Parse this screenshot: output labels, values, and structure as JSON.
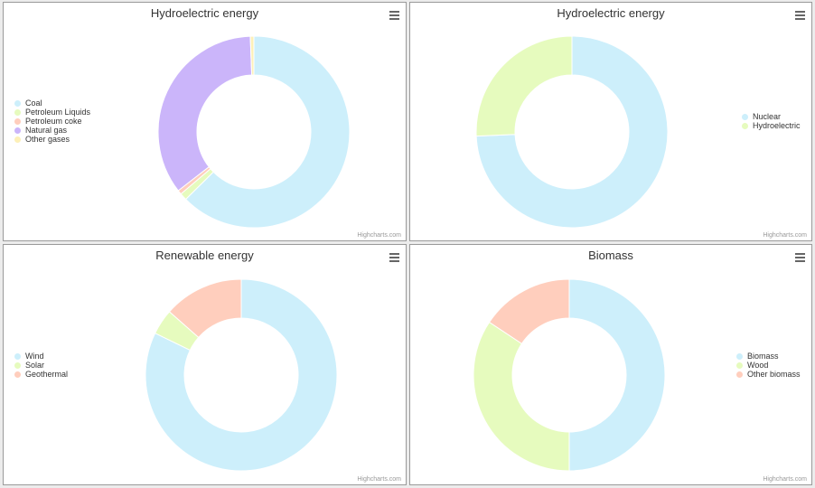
{
  "credit": "Highcharts.com",
  "chart_data": [
    {
      "type": "pie",
      "title": "Hydroelectric energy",
      "legend_position": "left",
      "categories": [
        "Coal",
        "Petroleum Liquids",
        "Petroleum coke",
        "Natural gas",
        "Other gases"
      ],
      "values": [
        62.6,
        1.2,
        0.7,
        34.9,
        0.6
      ],
      "colors": [
        "#cdeffb",
        "#e6fbbe",
        "#ffcebd",
        "#cbb5fa",
        "#fdf0b8"
      ]
    },
    {
      "type": "pie",
      "title": "Hydroelectric energy",
      "legend_position": "right",
      "categories": [
        "Nuclear",
        "Hydroelectric"
      ],
      "values": [
        74.3,
        25.7
      ],
      "colors": [
        "#cdeffb",
        "#e6fbbe"
      ]
    },
    {
      "type": "pie",
      "title": "Renewable energy",
      "legend_position": "left",
      "categories": [
        "Wind",
        "Solar",
        "Geothermal"
      ],
      "values": [
        82.2,
        4.3,
        13.5
      ],
      "colors": [
        "#cdeffb",
        "#e6fbbe",
        "#ffcebd"
      ]
    },
    {
      "type": "pie",
      "title": "Biomass",
      "legend_position": "right",
      "categories": [
        "Biomass",
        "Wood",
        "Other biomass"
      ],
      "values": [
        50.0,
        34.3,
        15.7
      ],
      "colors": [
        "#cdeffb",
        "#e6fbbe",
        "#ffcebd"
      ]
    }
  ]
}
